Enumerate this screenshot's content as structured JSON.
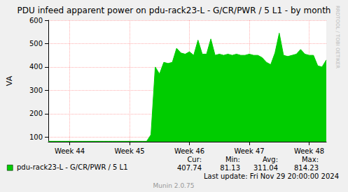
{
  "chart_data": {
    "type": "area",
    "title": "PDU infeed apparent power on pdu-rack23-L - G/CR/PWR / 5 L1 - by month",
    "ylabel": "VA",
    "categories": [
      null,
      null,
      null,
      null,
      null,
      "Week 44",
      null,
      null,
      null,
      null,
      null,
      null,
      null,
      null,
      null,
      null,
      null,
      null,
      null,
      "Week 45",
      null,
      null,
      null,
      null,
      null,
      null,
      null,
      null,
      null,
      null,
      null,
      null,
      null,
      "Week 46",
      null,
      null,
      null,
      null,
      null,
      null,
      null,
      null,
      null,
      null,
      null,
      null,
      null,
      "Week 47",
      null,
      null,
      null,
      null,
      null,
      null,
      null,
      null,
      null,
      null,
      null,
      null,
      null,
      "Week 48",
      null,
      null,
      null,
      null
    ],
    "series": [
      {
        "name": "pdu-rack23-L - G/CR/PWR / 5 L1",
        "color": "#00cc00",
        "values": [
          82,
          82,
          82,
          82,
          82,
          82,
          82,
          82,
          82,
          82,
          82,
          82,
          82,
          82,
          82,
          82,
          82,
          82,
          82,
          82,
          82,
          82,
          82,
          82,
          110,
          400,
          370,
          420,
          415,
          420,
          480,
          460,
          455,
          465,
          450,
          515,
          455,
          455,
          520,
          450,
          455,
          450,
          455,
          450,
          455,
          450,
          450,
          455,
          450,
          450,
          440,
          420,
          410,
          460,
          545,
          450,
          445,
          450,
          455,
          475,
          455,
          450,
          450,
          405,
          400,
          430
        ],
        "stats": [
          {
            "label": "Cur:",
            "value": 407.74
          },
          {
            "label": "Min:",
            "value": 81.13
          },
          {
            "label": "Avg:",
            "value": 311.04
          },
          {
            "label": "Max:",
            "value": 814.23
          }
        ]
      }
    ],
    "ylim": [
      80,
      600
    ],
    "yticks": [
      100,
      200,
      300,
      400,
      500,
      600
    ],
    "grid": true,
    "annotations": [
      "Last update: Fri Nov 29 20:00:00 2024",
      "Munin 2.0.75",
      "RRDTOOL / TOBI OETIKER"
    ]
  }
}
